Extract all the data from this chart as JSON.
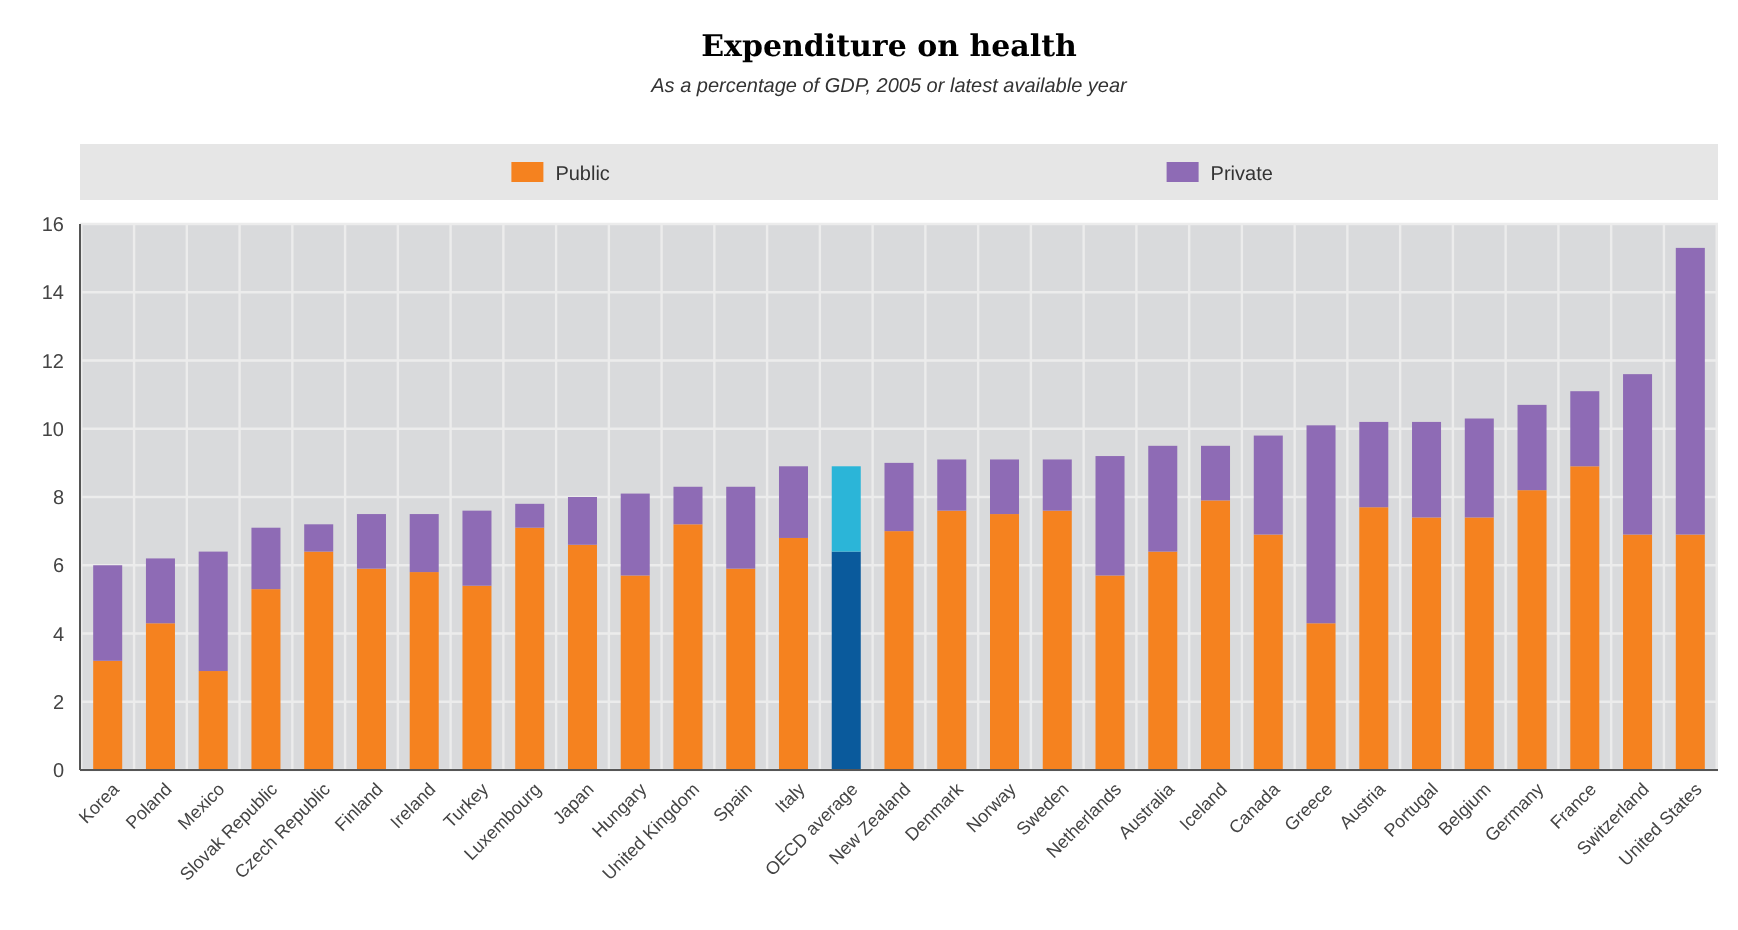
{
  "chart_data": {
    "type": "bar",
    "title": "Expenditure on health",
    "subtitle": "As a percentage of GDP, 2005 or latest available year",
    "stacked": true,
    "grid": true,
    "legend": "top",
    "categories": [
      "Korea",
      "Poland",
      "Mexico",
      "Slovak Republic",
      "Czech Republic",
      "Finland",
      "Ireland",
      "Turkey",
      "Luxembourg",
      "Japan",
      "Hungary",
      "United Kingdom",
      "Spain",
      "Italy",
      "OECD average",
      "New Zealand",
      "Denmark",
      "Norway",
      "Sweden",
      "Netherlands",
      "Australia",
      "Iceland",
      "Canada",
      "Greece",
      "Austria",
      "Portugal",
      "Belgium",
      "Germany",
      "France",
      "Switzerland",
      "United States"
    ],
    "series": [
      {
        "name": "Public",
        "color": "#f5821f",
        "colors": [
          "#f5821f",
          "#f5821f",
          "#f5821f",
          "#f5821f",
          "#f5821f",
          "#f5821f",
          "#f5821f",
          "#f5821f",
          "#f5821f",
          "#f5821f",
          "#f5821f",
          "#f5821f",
          "#f5821f",
          "#f5821f",
          "#0a5a9c",
          "#f5821f",
          "#f5821f",
          "#f5821f",
          "#f5821f",
          "#f5821f",
          "#f5821f",
          "#f5821f",
          "#f5821f",
          "#f5821f",
          "#f5821f",
          "#f5821f",
          "#f5821f",
          "#f5821f",
          "#f5821f",
          "#f5821f",
          "#f5821f"
        ],
        "values": [
          3.2,
          4.3,
          2.9,
          5.3,
          6.4,
          5.9,
          5.8,
          5.4,
          7.1,
          6.6,
          5.7,
          7.2,
          5.9,
          6.8,
          6.4,
          7.0,
          7.6,
          7.5,
          7.6,
          5.7,
          6.4,
          7.9,
          6.9,
          4.3,
          7.7,
          7.4,
          7.4,
          8.2,
          8.9,
          6.9,
          6.9
        ]
      },
      {
        "name": "Private",
        "color": "#8e6bb5",
        "colors": [
          "#8e6bb5",
          "#8e6bb5",
          "#8e6bb5",
          "#8e6bb5",
          "#8e6bb5",
          "#8e6bb5",
          "#8e6bb5",
          "#8e6bb5",
          "#8e6bb5",
          "#8e6bb5",
          "#8e6bb5",
          "#8e6bb5",
          "#8e6bb5",
          "#8e6bb5",
          "#2bb5d8",
          "#8e6bb5",
          "#8e6bb5",
          "#8e6bb5",
          "#8e6bb5",
          "#8e6bb5",
          "#8e6bb5",
          "#8e6bb5",
          "#8e6bb5",
          "#8e6bb5",
          "#8e6bb5",
          "#8e6bb5",
          "#8e6bb5",
          "#8e6bb5",
          "#8e6bb5",
          "#8e6bb5",
          "#8e6bb5"
        ],
        "values": [
          2.8,
          1.9,
          3.5,
          1.8,
          0.8,
          1.6,
          1.7,
          2.2,
          0.7,
          1.4,
          2.4,
          1.1,
          2.4,
          2.1,
          2.5,
          2.0,
          1.5,
          1.6,
          1.5,
          3.5,
          3.1,
          1.6,
          2.9,
          5.8,
          2.5,
          2.8,
          2.9,
          2.5,
          2.2,
          4.7,
          8.4
        ]
      }
    ],
    "ylim": [
      0,
      16
    ],
    "yticks": [
      0,
      2,
      4,
      6,
      8,
      10,
      12,
      14,
      16
    ]
  }
}
